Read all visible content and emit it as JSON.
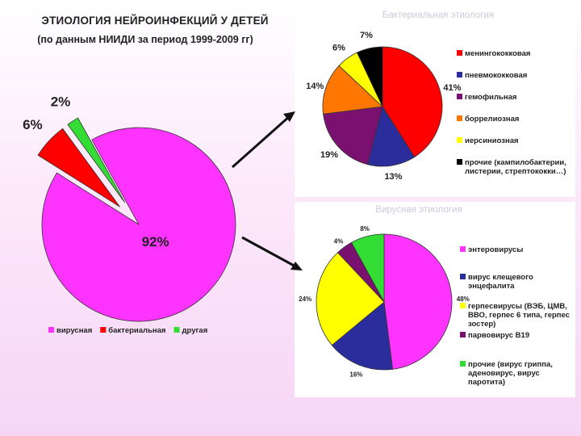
{
  "title": "ЭТИОЛОГИЯ НЕЙРОИНФЕКЦИЙ У ДЕТЕЙ",
  "subtitle": "(по данным НИИДИ за период 1999-2009 гг)",
  "chart_data": [
    {
      "type": "pie",
      "title": "",
      "categories": [
        "вирусная",
        "бактериальная",
        "другая"
      ],
      "values": [
        92,
        6,
        2
      ],
      "labels": [
        "92%",
        "6%",
        "2%"
      ],
      "colors": [
        "#ff33ff",
        "#ff0000",
        "#33dd33"
      ],
      "legend_position": "bottom"
    },
    {
      "type": "pie",
      "title": "Бактериальная этиология",
      "categories": [
        "менингококковая",
        "пневмококковая",
        "гемофильная",
        "боррелиозная",
        "иерсиниозная",
        "прочие (кампилобактерии, листерии, стрептококки…)"
      ],
      "values": [
        41,
        13,
        19,
        14,
        6,
        7
      ],
      "labels": [
        "41%",
        "13%",
        "19%",
        "14%",
        "6%",
        "7%"
      ],
      "colors": [
        "#ff0000",
        "#2b2d9c",
        "#7a1070",
        "#ff7700",
        "#ffff00",
        "#000000"
      ],
      "legend_position": "right"
    },
    {
      "type": "pie",
      "title": "Вирусная этиология",
      "categories": [
        "энтеровирусы",
        "вирус клещевого энцефалита",
        "герпесвирусы (ВЭБ, ЦМВ, ВВО, герпес 6 типа, герпес зостер)",
        "парвовирус В19",
        "прочие (вирус гриппа, аденовирус, вирус паротита)"
      ],
      "values": [
        48,
        16,
        24,
        4,
        8
      ],
      "labels": [
        "48%",
        "16%",
        "24%",
        "4%",
        "8%"
      ],
      "colors": [
        "#ff33ff",
        "#2b2d9c",
        "#ffff00",
        "#7a1070",
        "#33dd33"
      ],
      "legend_position": "right"
    }
  ]
}
